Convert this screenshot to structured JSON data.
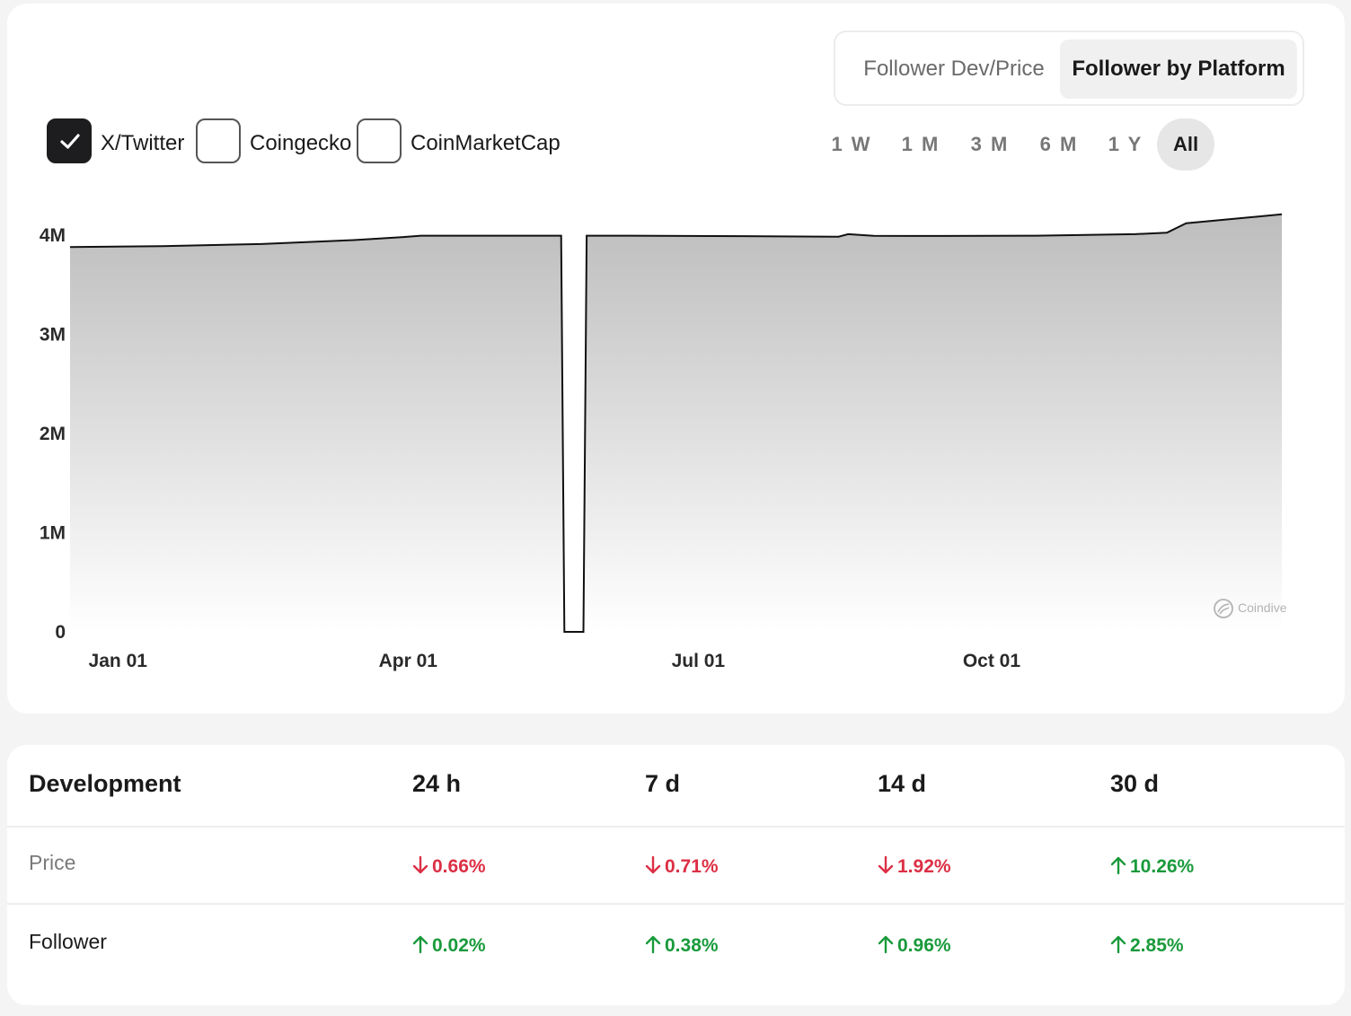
{
  "view_toggle": {
    "options": [
      "Follower Dev/Price",
      "Follower by Platform"
    ],
    "selected": "Follower by Platform"
  },
  "platforms": [
    {
      "label": "X/Twitter",
      "checked": true
    },
    {
      "label": "Coingecko",
      "checked": false
    },
    {
      "label": "CoinMarketCap",
      "checked": false
    }
  ],
  "ranges": [
    "1 W",
    "1 M",
    "3 M",
    "6 M",
    "1 Y",
    "All"
  ],
  "range_selected": "All",
  "watermark": "Coindive",
  "chart_data": {
    "type": "area",
    "title": "",
    "xlabel": "",
    "ylabel": "",
    "ylim": [
      0,
      4000000
    ],
    "yticks": [
      0,
      1000000,
      2000000,
      3000000,
      4000000
    ],
    "ytick_labels": [
      "0",
      "1M",
      "2M",
      "3M",
      "4M"
    ],
    "xtick_labels": [
      "Jan 01",
      "Apr 01",
      "Jul 01",
      "Oct 01"
    ],
    "grid": false,
    "series": [
      {
        "name": "X/Twitter",
        "x": [
          "2023-12-17",
          "2024-01-15",
          "2024-02-15",
          "2024-03-15",
          "2024-03-30",
          "2024-04-05",
          "2024-05-10",
          "2024-05-19",
          "2024-05-20",
          "2024-05-26",
          "2024-05-27",
          "2024-06-10",
          "2024-07-15",
          "2024-08-14",
          "2024-08-17",
          "2024-08-25",
          "2024-09-15",
          "2024-10-15",
          "2024-11-15",
          "2024-11-25",
          "2024-12-01",
          "2024-12-31"
        ],
        "values": [
          3880000,
          3890000,
          3910000,
          3950000,
          3980000,
          3995000,
          3995000,
          3995000,
          0,
          0,
          3995000,
          3995000,
          3990000,
          3985000,
          4010000,
          3993000,
          3992000,
          3995000,
          4010000,
          4025000,
          4120000,
          4210000
        ]
      }
    ]
  },
  "development": {
    "title": "Development",
    "periods": [
      "24 h",
      "7 d",
      "14 d",
      "30 d"
    ],
    "rows": [
      {
        "label": "Price",
        "values": [
          {
            "text": "0.66%",
            "dir": "down"
          },
          {
            "text": "0.71%",
            "dir": "down"
          },
          {
            "text": "1.92%",
            "dir": "down"
          },
          {
            "text": "10.26%",
            "dir": "up"
          }
        ]
      },
      {
        "label": "Follower",
        "values": [
          {
            "text": "0.02%",
            "dir": "up"
          },
          {
            "text": "0.38%",
            "dir": "up"
          },
          {
            "text": "0.96%",
            "dir": "up"
          },
          {
            "text": "2.85%",
            "dir": "up"
          }
        ]
      }
    ],
    "colors": {
      "up": "#1a9a3c",
      "down": "#dc2f45"
    }
  }
}
